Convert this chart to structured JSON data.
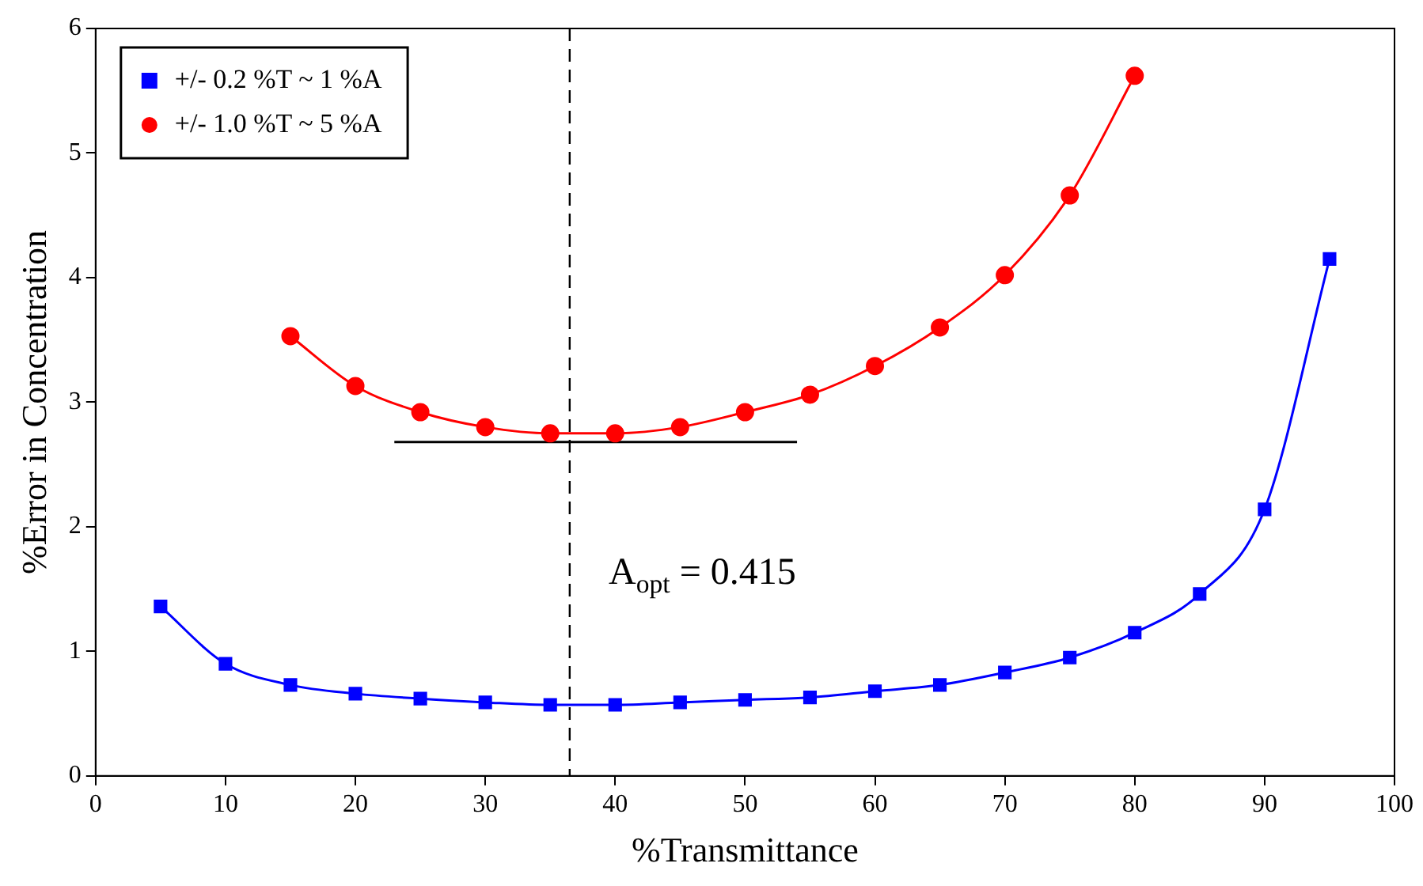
{
  "chart_data": {
    "type": "line",
    "xlabel": "%Transmittance",
    "ylabel": "%Error in Concentration",
    "xlim": [
      0,
      100
    ],
    "xticks": [
      0,
      10,
      20,
      30,
      40,
      50,
      60,
      70,
      80,
      90,
      100
    ],
    "ylim": [
      0,
      6
    ],
    "yticks": [
      0,
      1,
      2,
      3,
      4,
      5,
      6
    ],
    "grid": false,
    "legend": "top left",
    "line_style": "solid",
    "series": [
      {
        "name": "+/- 0.2 %T ~ 1 %A",
        "color": "#0000ff",
        "marker": "square",
        "x": [
          5,
          10,
          15,
          20,
          25,
          30,
          35,
          40,
          45,
          50,
          55,
          60,
          65,
          70,
          75,
          80,
          85,
          90,
          95
        ],
        "values": [
          1.36,
          0.9,
          0.73,
          0.66,
          0.62,
          0.59,
          0.57,
          0.57,
          0.59,
          0.61,
          0.63,
          0.68,
          0.73,
          0.83,
          0.95,
          1.15,
          1.46,
          2.14,
          4.15
        ]
      },
      {
        "name": "+/- 1.0 %T ~ 5 %A",
        "color": "#ff0000",
        "marker": "circle",
        "x": [
          15,
          20,
          25,
          30,
          35,
          40,
          45,
          50,
          55,
          60,
          65,
          70,
          75,
          80
        ],
        "values": [
          3.53,
          3.13,
          2.92,
          2.8,
          2.75,
          2.75,
          2.8,
          2.92,
          3.06,
          3.29,
          3.6,
          4.02,
          4.66,
          5.62
        ]
      },
      {
        "color": "#000000",
        "marker": "none",
        "x": [
          23,
          54
        ],
        "values": [
          2.68,
          2.68
        ]
      }
    ],
    "ref_lines": [
      {
        "axis": "x",
        "value": 36.5,
        "color": "#000000",
        "line_style": "dashed"
      }
    ],
    "annotations": [
      "A$_{opt}$ = 0.415"
    ]
  }
}
